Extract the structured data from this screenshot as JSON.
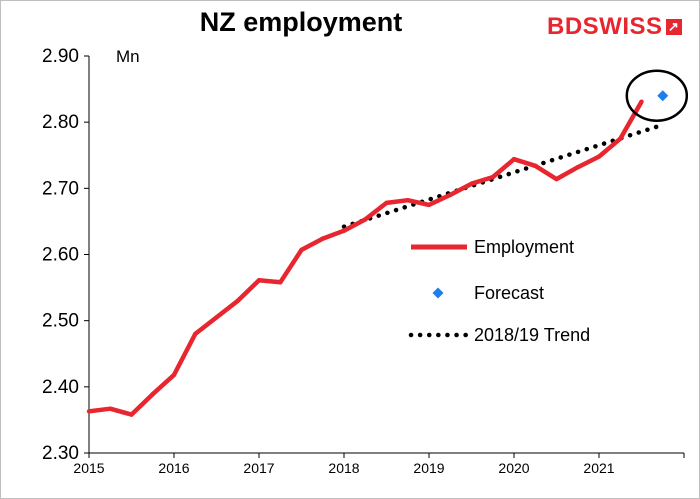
{
  "chart_data": {
    "type": "line",
    "title": "NZ employment",
    "ylabel": "Mn",
    "ylim": [
      2.3,
      2.9
    ],
    "yticks": [
      "2.30",
      "2.40",
      "2.50",
      "2.60",
      "2.70",
      "2.80",
      "2.90"
    ],
    "xlim": [
      2015.0,
      2022.0
    ],
    "xticks": [
      "2015",
      "2016",
      "2017",
      "2018",
      "2019",
      "2020",
      "2021"
    ],
    "grid": false,
    "legend_position": "right-middle",
    "series": [
      {
        "name": "Employment",
        "style": "line",
        "color": "#e8262f",
        "x": [
          2015.0,
          2015.25,
          2015.5,
          2015.75,
          2016.0,
          2016.25,
          2016.5,
          2016.75,
          2017.0,
          2017.25,
          2017.5,
          2017.75,
          2018.0,
          2018.25,
          2018.5,
          2018.75,
          2019.0,
          2019.25,
          2019.5,
          2019.75,
          2020.0,
          2020.25,
          2020.5,
          2020.75,
          2021.0,
          2021.25,
          2021.5
        ],
        "y": [
          2.363,
          2.367,
          2.358,
          2.389,
          2.418,
          2.48,
          2.505,
          2.53,
          2.561,
          2.558,
          2.607,
          2.624,
          2.636,
          2.653,
          2.678,
          2.682,
          2.675,
          2.69,
          2.707,
          2.717,
          2.744,
          2.734,
          2.714,
          2.732,
          2.748,
          2.775,
          2.831
        ]
      },
      {
        "name": "Forecast",
        "style": "marker",
        "color": "#1f7fe8",
        "x": [
          2021.75
        ],
        "y": [
          2.84
        ]
      },
      {
        "name": "2018/19 Trend",
        "style": "dotted",
        "color": "#000000",
        "x": [
          2018.0,
          2021.75
        ],
        "y": [
          2.642,
          2.796
        ]
      }
    ],
    "annotations": [
      {
        "type": "circle",
        "around": "Forecast",
        "x": 2021.68,
        "y": 2.84
      }
    ]
  },
  "brand": {
    "part1": "BD",
    "part2": "SWISS",
    "mark": "↗",
    "color": "#e8262f"
  }
}
